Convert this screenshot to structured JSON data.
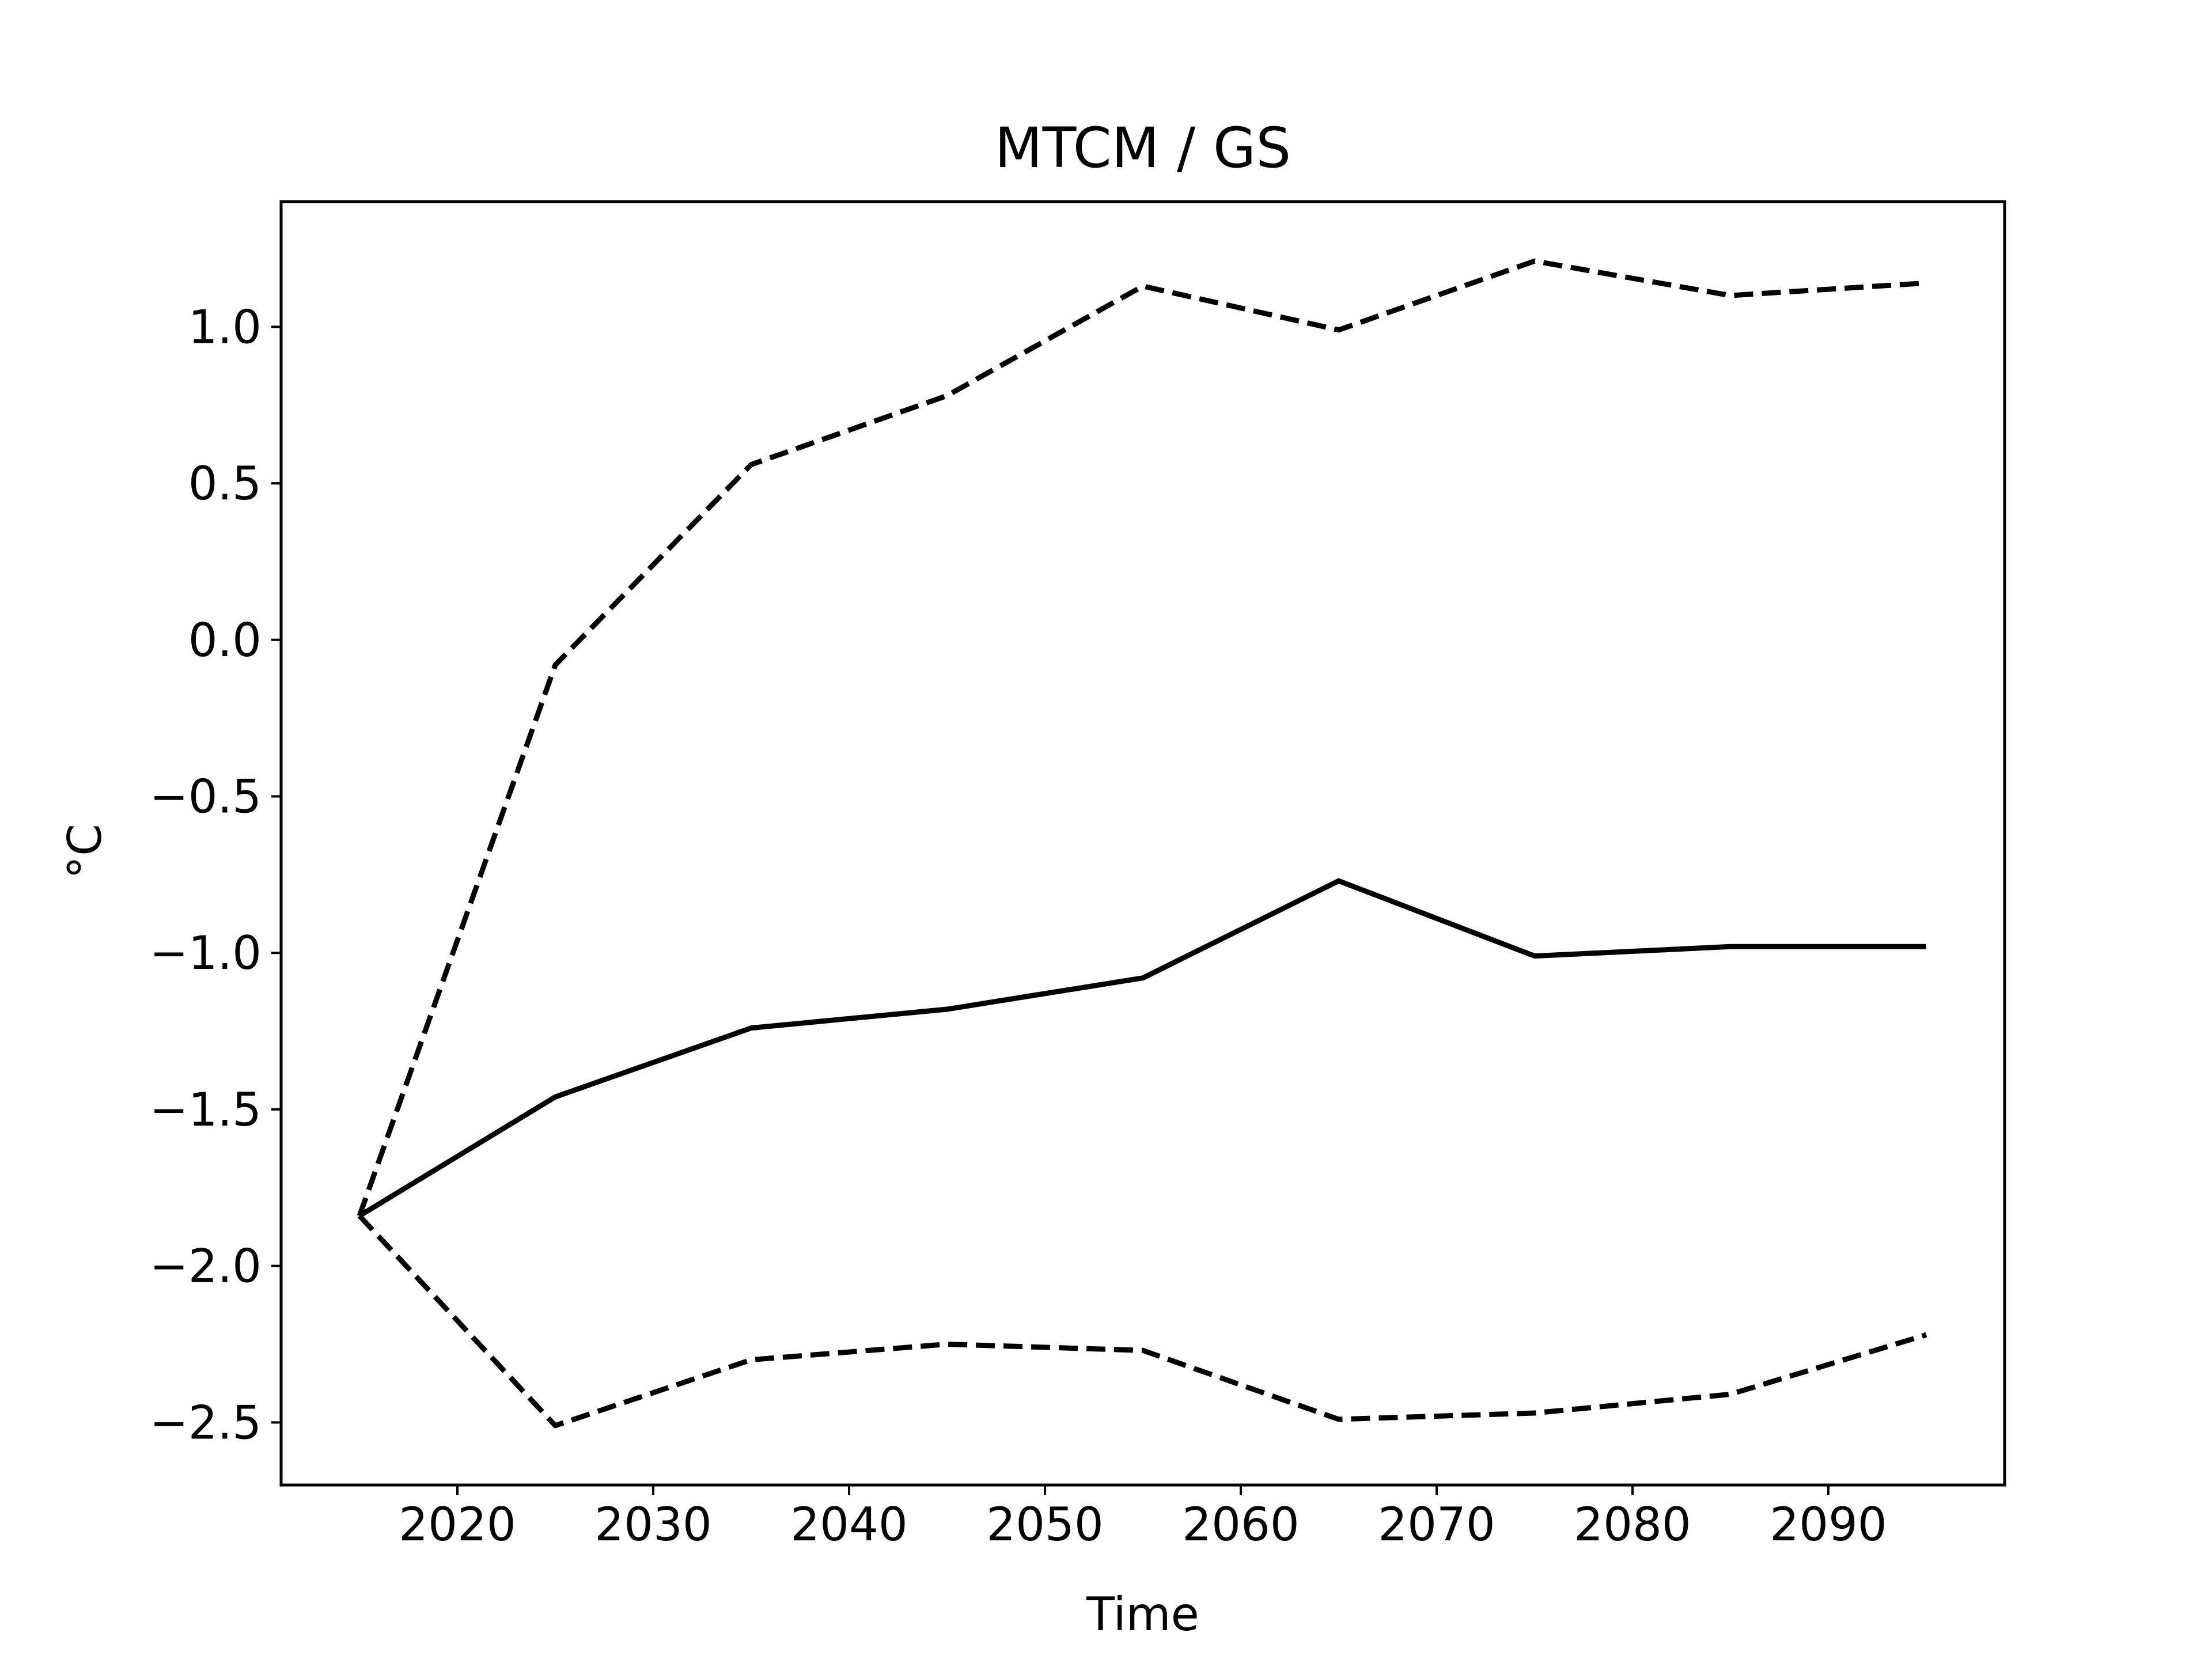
{
  "chart_data": {
    "type": "line",
    "title": "MTCM / GS",
    "xlabel": "Time",
    "ylabel": "°C",
    "xlim": [
      2011,
      2099
    ],
    "ylim": [
      -2.7,
      1.4
    ],
    "xticks": [
      2020,
      2030,
      2040,
      2050,
      2060,
      2070,
      2080,
      2090
    ],
    "xtick_labels": [
      "2020",
      "2030",
      "2040",
      "2050",
      "2060",
      "2070",
      "2080",
      "2090"
    ],
    "yticks": [
      1.0,
      0.5,
      0.0,
      -0.5,
      -1.0,
      -1.5,
      -2.0,
      -2.5
    ],
    "ytick_labels": [
      "1.0",
      "0.5",
      "0.0",
      "−0.5",
      "−1.0",
      "−1.5",
      "−2.0",
      "−2.5"
    ],
    "grid": false,
    "x": [
      2015,
      2025,
      2035,
      2045,
      2055,
      2065,
      2075,
      2085,
      2095
    ],
    "series": [
      {
        "style": "solid",
        "color": "#000000",
        "values": [
          -1.84,
          -1.46,
          -1.24,
          -1.18,
          -1.08,
          -0.77,
          -1.01,
          -0.98,
          -0.98
        ]
      },
      {
        "style": "dashed",
        "color": "#000000",
        "values": [
          -1.84,
          -0.08,
          0.56,
          0.78,
          1.13,
          0.99,
          1.21,
          1.1,
          1.14
        ]
      },
      {
        "style": "dashed",
        "color": "#000000",
        "values": [
          -1.84,
          -2.51,
          -2.3,
          -2.25,
          -2.27,
          -2.49,
          -2.47,
          -2.41,
          -2.22
        ]
      }
    ]
  }
}
